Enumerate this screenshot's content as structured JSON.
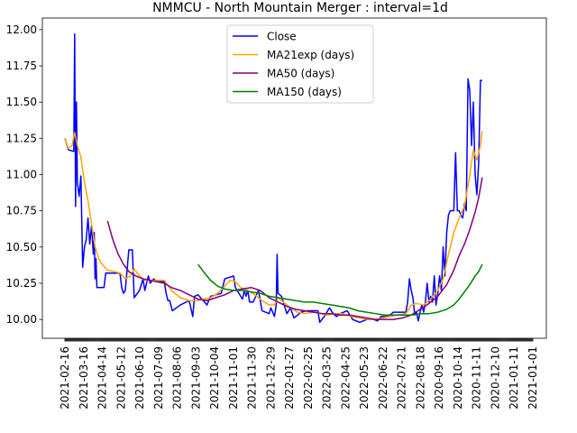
{
  "chart_data": {
    "type": "line",
    "title": "NMMCU - North Mountain Merger : interval=1d",
    "xlabel": "",
    "ylabel": "",
    "ylim": [
      9.87,
      12.08
    ],
    "yticks": [
      "10.00",
      "10.25",
      "10.50",
      "10.75",
      "11.00",
      "11.25",
      "11.50",
      "11.75",
      "12.00"
    ],
    "x_tick_labels": [
      "2021-02-16",
      "2021-03-16",
      "2021-04-14",
      "2021-05-12",
      "2021-06-10",
      "2021-07-09",
      "2021-08-06",
      "2021-09-03",
      "2021-10-04",
      "2021-11-01",
      "2021-11-30",
      "2021-12-29",
      "2022-01-27",
      "2022-02-25",
      "2022-03-25",
      "2022-04-25",
      "2022-05-23",
      "2022-06-22",
      "2022-07-21",
      "2022-08-18",
      "2020-09-16",
      "2020-10-14",
      "2020-11-11",
      "2020-12-10",
      "2021-01-11",
      "2021-01-01"
    ],
    "n_points": 528,
    "legend_position": "upper center",
    "grid": false,
    "series": [
      {
        "name": "Close",
        "color": "#0000ff",
        "points": [
          [
            0,
            11.25
          ],
          [
            4,
            11.17
          ],
          [
            10,
            11.16
          ],
          [
            11,
            11.97
          ],
          [
            12,
            10.78
          ],
          [
            13,
            11.5
          ],
          [
            14,
            10.95
          ],
          [
            16,
            10.85
          ],
          [
            18,
            10.99
          ],
          [
            20,
            10.36
          ],
          [
            22,
            10.5
          ],
          [
            24,
            10.55
          ],
          [
            26,
            10.7
          ],
          [
            28,
            10.52
          ],
          [
            30,
            10.65
          ],
          [
            32,
            10.45
          ],
          [
            33,
            10.6
          ],
          [
            34,
            10.28
          ],
          [
            35,
            10.42
          ],
          [
            36,
            10.22
          ],
          [
            44,
            10.22
          ],
          [
            46,
            10.32
          ],
          [
            62,
            10.32
          ],
          [
            64,
            10.22
          ],
          [
            66,
            10.18
          ],
          [
            68,
            10.2
          ],
          [
            72,
            10.48
          ],
          [
            76,
            10.48
          ],
          [
            78,
            10.15
          ],
          [
            84,
            10.2
          ],
          [
            88,
            10.28
          ],
          [
            90,
            10.2
          ],
          [
            94,
            10.3
          ],
          [
            96,
            10.25
          ],
          [
            100,
            10.28
          ],
          [
            104,
            10.26
          ],
          [
            112,
            10.26
          ],
          [
            114,
            10.18
          ],
          [
            116,
            10.13
          ],
          [
            118,
            10.13
          ],
          [
            121,
            10.06
          ],
          [
            130,
            10.1
          ],
          [
            140,
            10.13
          ],
          [
            144,
            10.02
          ],
          [
            146,
            10.16
          ],
          [
            150,
            10.17
          ],
          [
            160,
            10.1
          ],
          [
            162,
            10.13
          ],
          [
            164,
            10.16
          ],
          [
            176,
            10.18
          ],
          [
            180,
            10.28
          ],
          [
            190,
            10.3
          ],
          [
            192,
            10.22
          ],
          [
            200,
            10.14
          ],
          [
            202,
            10.2
          ],
          [
            204,
            10.16
          ],
          [
            206,
            10.2
          ],
          [
            208,
            10.12
          ],
          [
            212,
            10.12
          ],
          [
            218,
            10.2
          ],
          [
            222,
            10.06
          ],
          [
            230,
            10.04
          ],
          [
            232,
            10.08
          ],
          [
            236,
            10.02
          ],
          [
            238,
            10.1
          ],
          [
            239,
            10.45
          ],
          [
            240,
            10.18
          ],
          [
            244,
            10.16
          ],
          [
            250,
            10.04
          ],
          [
            254,
            10.08
          ],
          [
            258,
            10.01
          ],
          [
            266,
            10.05
          ],
          [
            272,
            10.06
          ],
          [
            280,
            10.06
          ],
          [
            285,
            10.06
          ],
          [
            287,
            9.98
          ],
          [
            292,
            10.02
          ],
          [
            298,
            10.08
          ],
          [
            302,
            10.04
          ],
          [
            306,
            10.02
          ],
          [
            310,
            10.04
          ],
          [
            318,
            10.06
          ],
          [
            324,
            10.0
          ],
          [
            332,
            9.98
          ],
          [
            340,
            10.0
          ],
          [
            348,
            10.0
          ],
          [
            352,
            9.99
          ],
          [
            356,
            10.02
          ],
          [
            364,
            10.02
          ],
          [
            370,
            10.05
          ],
          [
            384,
            10.05
          ],
          [
            386,
            10.12
          ],
          [
            388,
            10.28
          ],
          [
            390,
            10.2
          ],
          [
            392,
            10.15
          ],
          [
            394,
            10.03
          ],
          [
            396,
            10.05
          ],
          [
            398,
            9.99
          ],
          [
            400,
            10.05
          ],
          [
            402,
            10.1
          ],
          [
            404,
            10.05
          ],
          [
            406,
            10.12
          ],
          [
            408,
            10.25
          ],
          [
            410,
            10.12
          ],
          [
            412,
            10.16
          ],
          [
            414,
            10.12
          ],
          [
            416,
            10.3
          ],
          [
            418,
            10.1
          ],
          [
            420,
            10.18
          ],
          [
            422,
            10.3
          ],
          [
            424,
            10.2
          ],
          [
            426,
            10.5
          ],
          [
            428,
            10.3
          ],
          [
            430,
            10.6
          ],
          [
            432,
            10.72
          ],
          [
            434,
            10.75
          ],
          [
            438,
            10.75
          ],
          [
            440,
            11.15
          ],
          [
            442,
            10.75
          ],
          [
            444,
            10.75
          ],
          [
            446,
            10.72
          ],
          [
            448,
            10.7
          ],
          [
            450,
            10.8
          ],
          [
            452,
            10.75
          ],
          [
            454,
            11.66
          ],
          [
            456,
            11.58
          ],
          [
            458,
            11.2
          ],
          [
            460,
            11.5
          ],
          [
            462,
            11.0
          ],
          [
            464,
            10.86
          ],
          [
            466,
            11.08
          ],
          [
            468,
            11.65
          ],
          [
            470,
            11.65
          ]
        ]
      },
      {
        "name": "MA21exp (days)",
        "color": "#ffa500",
        "points": [
          [
            0,
            11.25
          ],
          [
            4,
            11.18
          ],
          [
            8,
            11.2
          ],
          [
            11,
            11.29
          ],
          [
            14,
            11.2
          ],
          [
            18,
            11.12
          ],
          [
            22,
            10.95
          ],
          [
            26,
            10.82
          ],
          [
            30,
            10.66
          ],
          [
            34,
            10.5
          ],
          [
            38,
            10.42
          ],
          [
            42,
            10.38
          ],
          [
            48,
            10.34
          ],
          [
            56,
            10.33
          ],
          [
            62,
            10.32
          ],
          [
            68,
            10.28
          ],
          [
            74,
            10.3
          ],
          [
            78,
            10.35
          ],
          [
            84,
            10.3
          ],
          [
            90,
            10.27
          ],
          [
            96,
            10.27
          ],
          [
            104,
            10.27
          ],
          [
            112,
            10.27
          ],
          [
            120,
            10.2
          ],
          [
            130,
            10.15
          ],
          [
            140,
            10.13
          ],
          [
            148,
            10.13
          ],
          [
            156,
            10.14
          ],
          [
            164,
            10.15
          ],
          [
            172,
            10.18
          ],
          [
            180,
            10.23
          ],
          [
            186,
            10.27
          ],
          [
            192,
            10.26
          ],
          [
            198,
            10.22
          ],
          [
            206,
            10.2
          ],
          [
            214,
            10.17
          ],
          [
            222,
            10.13
          ],
          [
            230,
            10.1
          ],
          [
            236,
            10.1
          ],
          [
            240,
            10.15
          ],
          [
            246,
            10.12
          ],
          [
            254,
            10.08
          ],
          [
            262,
            10.05
          ],
          [
            270,
            10.04
          ],
          [
            280,
            10.05
          ],
          [
            288,
            10.04
          ],
          [
            296,
            10.03
          ],
          [
            304,
            10.04
          ],
          [
            312,
            10.04
          ],
          [
            322,
            10.02
          ],
          [
            332,
            10.01
          ],
          [
            342,
            10.0
          ],
          [
            350,
            10.0
          ],
          [
            358,
            10.01
          ],
          [
            366,
            10.02
          ],
          [
            374,
            10.03
          ],
          [
            384,
            10.04
          ],
          [
            390,
            10.1
          ],
          [
            396,
            10.11
          ],
          [
            404,
            10.1
          ],
          [
            412,
            10.14
          ],
          [
            420,
            10.2
          ],
          [
            426,
            10.28
          ],
          [
            432,
            10.45
          ],
          [
            438,
            10.6
          ],
          [
            444,
            10.7
          ],
          [
            450,
            10.78
          ],
          [
            456,
            11.0
          ],
          [
            460,
            11.17
          ],
          [
            464,
            11.1
          ],
          [
            468,
            11.2
          ],
          [
            470,
            11.3
          ]
        ]
      },
      {
        "name": "MA50 (days)",
        "color": "#800080",
        "points": [
          [
            48,
            10.68
          ],
          [
            54,
            10.55
          ],
          [
            60,
            10.45
          ],
          [
            66,
            10.38
          ],
          [
            72,
            10.33
          ],
          [
            80,
            10.3
          ],
          [
            88,
            10.28
          ],
          [
            96,
            10.27
          ],
          [
            104,
            10.26
          ],
          [
            112,
            10.25
          ],
          [
            120,
            10.22
          ],
          [
            130,
            10.2
          ],
          [
            140,
            10.17
          ],
          [
            150,
            10.14
          ],
          [
            160,
            10.13
          ],
          [
            170,
            10.15
          ],
          [
            180,
            10.17
          ],
          [
            190,
            10.2
          ],
          [
            200,
            10.21
          ],
          [
            210,
            10.22
          ],
          [
            220,
            10.2
          ],
          [
            230,
            10.15
          ],
          [
            240,
            10.12
          ],
          [
            250,
            10.09
          ],
          [
            260,
            10.07
          ],
          [
            270,
            10.06
          ],
          [
            280,
            10.05
          ],
          [
            290,
            10.04
          ],
          [
            300,
            10.04
          ],
          [
            310,
            10.03
          ],
          [
            320,
            10.03
          ],
          [
            330,
            10.02
          ],
          [
            340,
            10.01
          ],
          [
            350,
            10.0
          ],
          [
            360,
            10.0
          ],
          [
            370,
            10.0
          ],
          [
            380,
            10.01
          ],
          [
            390,
            10.03
          ],
          [
            400,
            10.07
          ],
          [
            410,
            10.11
          ],
          [
            420,
            10.16
          ],
          [
            430,
            10.24
          ],
          [
            438,
            10.34
          ],
          [
            444,
            10.44
          ],
          [
            450,
            10.52
          ],
          [
            456,
            10.62
          ],
          [
            462,
            10.74
          ],
          [
            466,
            10.84
          ],
          [
            470,
            10.98
          ]
        ]
      },
      {
        "name": "MA150 (days)",
        "color": "#008000",
        "points": [
          [
            150,
            10.38
          ],
          [
            156,
            10.33
          ],
          [
            164,
            10.27
          ],
          [
            172,
            10.23
          ],
          [
            180,
            10.21
          ],
          [
            190,
            10.2
          ],
          [
            200,
            10.2
          ],
          [
            210,
            10.19
          ],
          [
            220,
            10.18
          ],
          [
            230,
            10.16
          ],
          [
            240,
            10.15
          ],
          [
            250,
            10.14
          ],
          [
            260,
            10.13
          ],
          [
            270,
            10.12
          ],
          [
            280,
            10.12
          ],
          [
            290,
            10.11
          ],
          [
            300,
            10.1
          ],
          [
            310,
            10.09
          ],
          [
            320,
            10.08
          ],
          [
            330,
            10.06
          ],
          [
            340,
            10.05
          ],
          [
            350,
            10.04
          ],
          [
            360,
            10.03
          ],
          [
            370,
            10.03
          ],
          [
            380,
            10.03
          ],
          [
            390,
            10.03
          ],
          [
            400,
            10.04
          ],
          [
            410,
            10.04
          ],
          [
            420,
            10.05
          ],
          [
            430,
            10.07
          ],
          [
            438,
            10.1
          ],
          [
            444,
            10.14
          ],
          [
            450,
            10.19
          ],
          [
            456,
            10.24
          ],
          [
            462,
            10.3
          ],
          [
            466,
            10.33
          ],
          [
            470,
            10.38
          ]
        ]
      }
    ]
  }
}
